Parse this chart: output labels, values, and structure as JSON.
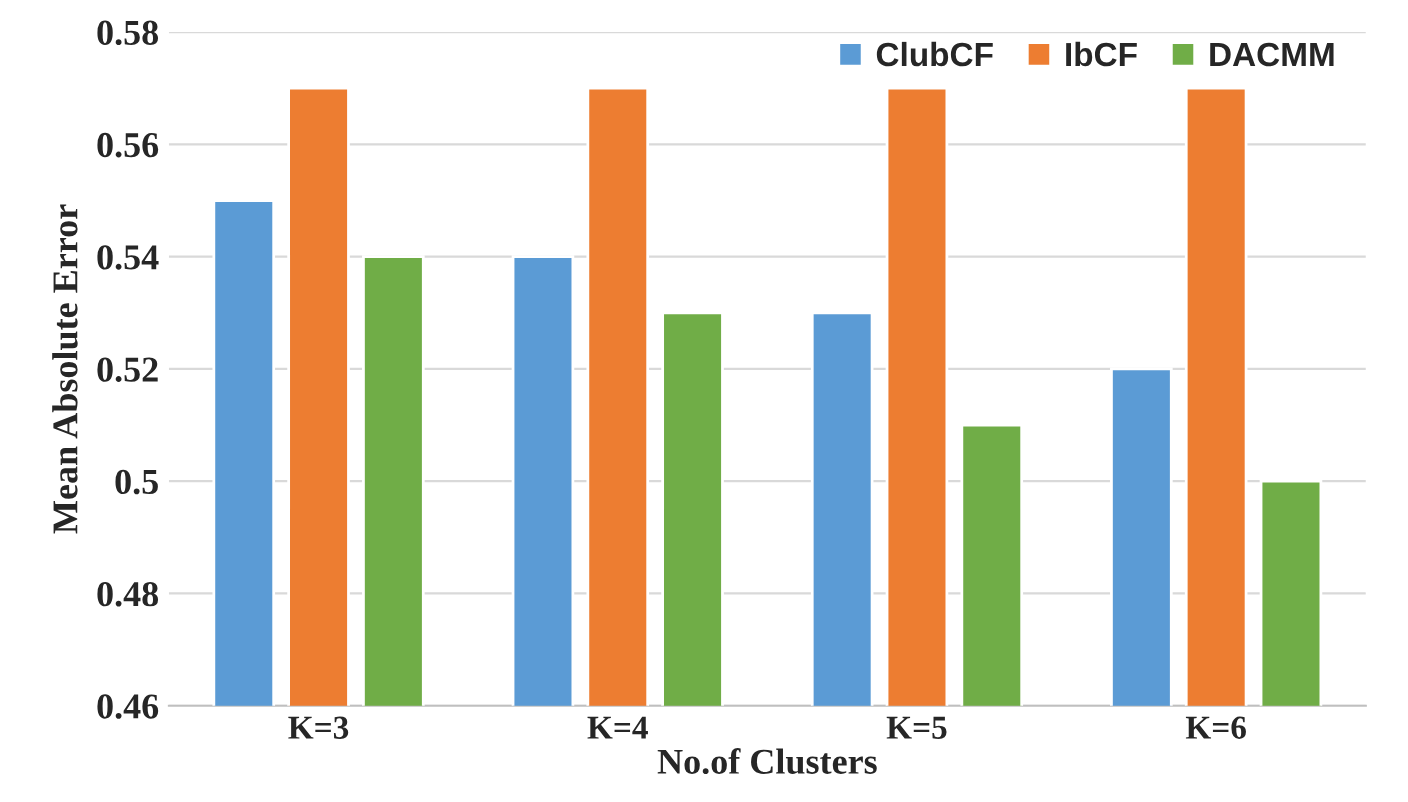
{
  "chart_data": {
    "type": "bar",
    "xlabel": "No.of Clusters",
    "ylabel": "Mean Absolute Error",
    "categories": [
      "K=3",
      "K=4",
      "K=5",
      "K=6"
    ],
    "series": [
      {
        "name": "ClubCF",
        "color": "#5b9bd5",
        "values": [
          0.55,
          0.54,
          0.53,
          0.52
        ]
      },
      {
        "name": "IbCF",
        "color": "#ed7d31",
        "values": [
          0.57,
          0.57,
          0.57,
          0.57
        ]
      },
      {
        "name": "DACMM",
        "color": "#70ad47",
        "values": [
          0.54,
          0.53,
          0.51,
          0.5
        ]
      }
    ],
    "ylim": [
      0.46,
      0.58
    ],
    "yticks": [
      0.46,
      0.48,
      0.5,
      0.52,
      0.54,
      0.56,
      0.58
    ],
    "grid": "y",
    "legend": "top right"
  }
}
